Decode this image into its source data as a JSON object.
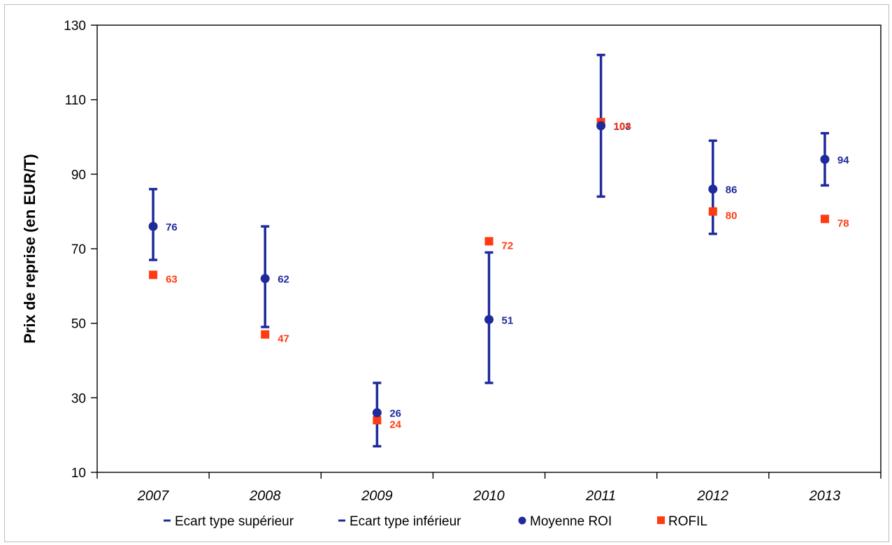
{
  "chart_data": {
    "type": "scatter",
    "categories": [
      "2007",
      "2008",
      "2009",
      "2010",
      "2011",
      "2012",
      "2013"
    ],
    "ylabel": "Prix de reprise (en EUR/T)",
    "xlabel": "",
    "ylim": [
      10,
      130
    ],
    "yticks": [
      10,
      30,
      50,
      70,
      90,
      110,
      130
    ],
    "grid": false,
    "legend_position": "bottom",
    "series": [
      {
        "name": "Ecart type supérieur",
        "marker": "dash",
        "color": "#1f2a9c",
        "values": [
          86,
          76,
          34,
          69,
          122,
          99,
          101
        ]
      },
      {
        "name": "Ecart type inférieur",
        "marker": "dash",
        "color": "#1f2a9c",
        "values": [
          67,
          49,
          17,
          34,
          84,
          74,
          87
        ]
      },
      {
        "name": "Moyenne ROI",
        "marker": "circle",
        "color": "#1f2a9c",
        "values": [
          76,
          62,
          26,
          51,
          103,
          86,
          94
        ],
        "labels": [
          "76",
          "62",
          "26",
          "51",
          "103",
          "86",
          "94"
        ]
      },
      {
        "name": "ROFIL",
        "marker": "square",
        "color": "#ff3b12",
        "values": [
          63,
          47,
          24,
          72,
          104,
          80,
          78
        ],
        "labels": [
          "63",
          "47",
          "24",
          "72",
          "104",
          "80",
          "78"
        ]
      }
    ]
  }
}
